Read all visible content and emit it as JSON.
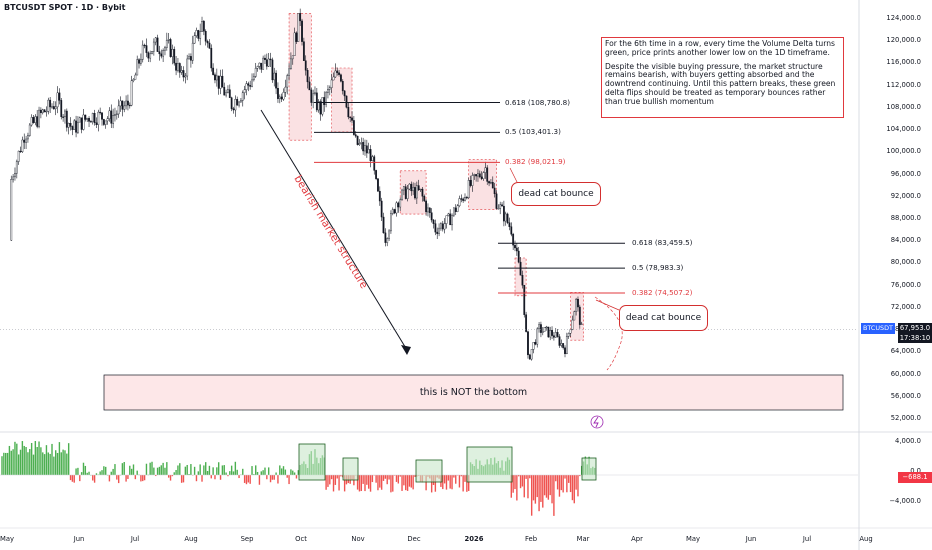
{
  "symbol_title": "BTCUSDT SPOT · 1D · Bybit",
  "note": {
    "para1": "For the 6th time in a row, every time the Volume Delta turns green, price prints another lower low on the 1D timeframe.",
    "para2": "Despite the visible buying pressure, the market structure remains bearish, with buyers getting absorbed and the downtrend continuing. Until this pattern breaks, these green delta flips should be treated as temporary bounces rather than true bullish momentum"
  },
  "annotations": {
    "bearish_structure": "bearish market structure",
    "dead_cat_1": "dead cat bounce",
    "dead_cat_2": "dead cat bounce",
    "not_bottom": "this is NOT the bottom"
  },
  "price_tag": {
    "symbol": "BTCUSDT",
    "price": "67,953.0",
    "countdown": "17:38:10"
  },
  "delta_tag": "−688.1",
  "colors": {
    "up": "#26a69a",
    "down": "#ef5350",
    "fib_red": "#e0393e",
    "fib_black": "#131722",
    "zone_fill": "#f8d7da",
    "green_box": "#c8e6c9",
    "accent": "#2962ff"
  },
  "chart_data": {
    "type": "candlestick",
    "title": "BTCUSDT SPOT · 1D · Bybit",
    "x_ticks": [
      "May",
      "Jun",
      "Jul",
      "Aug",
      "Sep",
      "Oct",
      "Nov",
      "Dec",
      "2026",
      "Feb",
      "Mar",
      "Apr",
      "May",
      "Jun",
      "Jul",
      "Aug"
    ],
    "y_ticks": [
      "124,000.0",
      "120,000.0",
      "116,000.0",
      "112,000.0",
      "108,000.0",
      "104,000.0",
      "100,000.0",
      "96,000.0",
      "92,000.0",
      "88,000.0",
      "84,000.0",
      "80,000.0",
      "76,000.0",
      "72,000.0",
      "68,000.0",
      "64,000.0",
      "60,000.0",
      "56,000.0",
      "52,000.0"
    ],
    "ylim": [
      50000,
      127000
    ],
    "price_path": [
      [
        "Apr 28",
        84000
      ],
      [
        "May 3",
        95000
      ],
      [
        "May 10",
        103000
      ],
      [
        "May 20",
        107000
      ],
      [
        "May 28",
        109000
      ],
      [
        "Jun 5",
        104000
      ],
      [
        "Jun 15",
        106500
      ],
      [
        "Jun 25",
        106000
      ],
      [
        "Jul 5",
        108500
      ],
      [
        "Jul 12",
        117500
      ],
      [
        "Jul 20",
        119000
      ],
      [
        "Jul 28",
        118500
      ],
      [
        "Aug 3",
        113000
      ],
      [
        "Aug 10",
        119500
      ],
      [
        "Aug 14",
        123000
      ],
      [
        "Aug 22",
        113000
      ],
      [
        "Aug 30",
        108500
      ],
      [
        "Sep 8",
        112000
      ],
      [
        "Sep 18",
        117000
      ],
      [
        "Sep 25",
        109500
      ],
      [
        "Oct 1",
        117000
      ],
      [
        "Oct 6",
        124500
      ],
      [
        "Oct 10",
        111000
      ],
      [
        "Oct 17",
        107500
      ],
      [
        "Oct 27",
        115000
      ],
      [
        "Nov 5",
        101500
      ],
      [
        "Nov 13",
        99500
      ],
      [
        "Nov 21",
        84500
      ],
      [
        "Nov 27",
        91000
      ],
      [
        "Dec 3",
        93000
      ],
      [
        "Dec 10",
        92500
      ],
      [
        "Dec 18",
        86000
      ],
      [
        "Dec 25",
        87500
      ],
      [
        "Jan 5",
        93500
      ],
      [
        "Jan 14",
        97000
      ],
      [
        "Jan 20",
        91000
      ],
      [
        "Jan 28",
        86000
      ],
      [
        "Feb 3",
        76000
      ],
      [
        "Feb 6",
        62500
      ],
      [
        "Feb 12",
        68000
      ],
      [
        "Feb 20",
        67000
      ],
      [
        "Feb 26",
        64500
      ],
      [
        "Mar 4",
        73000
      ],
      [
        "Mar 7",
        67953
      ]
    ],
    "fib_levels": [
      {
        "label": "0.618 (108,780.8)",
        "value": 108780.8,
        "color": "black"
      },
      {
        "label": "0.5 (103,401.3)",
        "value": 103401.3,
        "color": "black"
      },
      {
        "label": "0.382 (98,021.9)",
        "value": 98021.9,
        "color": "red"
      },
      {
        "label": "0.618 (83,459.5)",
        "value": 83459.5,
        "color": "black"
      },
      {
        "label": "0.5 (78,983.3)",
        "value": 78983.3,
        "color": "black"
      },
      {
        "label": "0.382 (74,507.2)",
        "value": 74507.2,
        "color": "red"
      }
    ],
    "current_price": 67953.0,
    "volume_delta": {
      "y_ticks": [
        "4,000.0",
        "0.0",
        "−4,000.0"
      ],
      "last_value": -688.1
    },
    "grid": false
  }
}
